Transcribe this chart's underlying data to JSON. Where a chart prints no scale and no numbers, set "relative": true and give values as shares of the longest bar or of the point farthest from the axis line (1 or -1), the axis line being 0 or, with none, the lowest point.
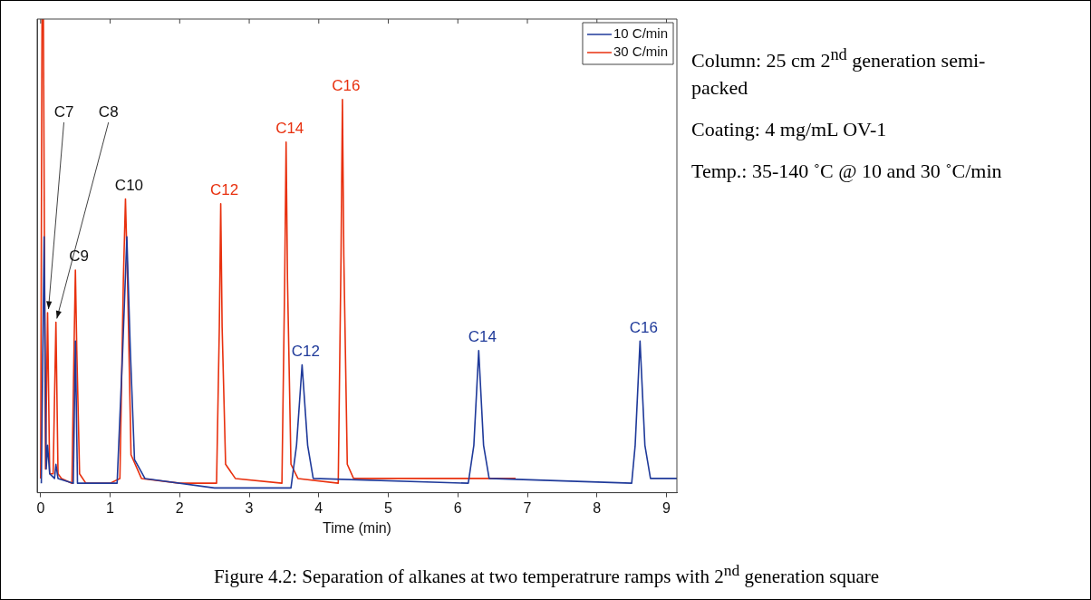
{
  "chart_data": {
    "type": "line",
    "xlabel": "Time (min)",
    "relative": true,
    "legend": "top right",
    "xlim": [
      -0.05,
      9.15
    ],
    "xticks": [
      0,
      1,
      2,
      3,
      4,
      5,
      6,
      7,
      8,
      9
    ],
    "grid": false,
    "series": [
      {
        "name": "10 C/min",
        "color": "#1f3a9a",
        "x": [
          0.01,
          0.05,
          0.08,
          0.1,
          0.13,
          0.2,
          0.22,
          0.25,
          0.47,
          0.5,
          0.53,
          1.1,
          1.18,
          1.24,
          1.29,
          1.35,
          1.5,
          2.5,
          3.6,
          3.68,
          3.76,
          3.84,
          3.92,
          6.15,
          6.23,
          6.3,
          6.37,
          6.45,
          8.5,
          8.55,
          8.62,
          8.69,
          8.77,
          9.15
        ],
        "values": [
          0.02,
          0.54,
          0.05,
          0.1,
          0.04,
          0.03,
          0.06,
          0.03,
          0.02,
          0.32,
          0.02,
          0.02,
          0.3,
          0.54,
          0.3,
          0.07,
          0.03,
          0.01,
          0.01,
          0.1,
          0.27,
          0.1,
          0.03,
          0.02,
          0.1,
          0.3,
          0.1,
          0.03,
          0.02,
          0.1,
          0.32,
          0.1,
          0.03,
          0.03
        ]
      },
      {
        "name": "30 C/min",
        "color": "#e8300e",
        "x": [
          0,
          0.02,
          0.04,
          0.07,
          0.1,
          0.13,
          0.18,
          0.22,
          0.25,
          0.3,
          0.45,
          0.48,
          0.5,
          0.52,
          0.56,
          0.65,
          1.0,
          1.14,
          1.19,
          1.22,
          1.25,
          1.3,
          1.45,
          2.0,
          2.53,
          2.57,
          2.59,
          2.61,
          2.66,
          2.8,
          3.47,
          3.51,
          3.53,
          3.55,
          3.6,
          3.7,
          4.28,
          4.32,
          4.34,
          4.36,
          4.41,
          4.5,
          6.83
        ],
        "values": [
          0.03,
          1,
          1,
          0.05,
          0.38,
          0.04,
          0.04,
          0.36,
          0.04,
          0.03,
          0.02,
          0.3,
          0.47,
          0.3,
          0.04,
          0.02,
          0.02,
          0.03,
          0.45,
          0.62,
          0.45,
          0.08,
          0.03,
          0.02,
          0.02,
          0.35,
          0.61,
          0.35,
          0.06,
          0.03,
          0.02,
          0.45,
          0.74,
          0.45,
          0.06,
          0.03,
          0.02,
          0.5,
          0.83,
          0.5,
          0.06,
          0.03,
          0.03
        ]
      }
    ],
    "annotations": [
      {
        "text": "C7",
        "x": 0.1,
        "y": 0.38
      },
      {
        "text": "C8",
        "x": 0.22,
        "y": 0.36
      },
      {
        "text": "C9",
        "x": 0.5,
        "y": 0.47
      },
      {
        "text": "C10",
        "x": 1.22,
        "y": 0.62
      },
      {
        "text": "C12",
        "x": 2.59,
        "y": 0.61
      },
      {
        "text": "C14",
        "x": 3.53,
        "y": 0.74
      },
      {
        "text": "C16",
        "x": 4.34,
        "y": 0.83
      },
      {
        "text": "C12",
        "x": 3.76,
        "y": 0.27
      },
      {
        "text": "C14",
        "x": 6.3,
        "y": 0.3
      },
      {
        "text": "C16",
        "x": 8.62,
        "y": 0.32
      },
      "Column: 25 cm 2$^{nd}$ generation semi-packed",
      "Coating: 4 mg/mL OV-1",
      "Temp.: 35-140 ˚C @ 10 and 30 ˚C/min",
      "Figure 4.2: Separation of alkanes at two temperatrure ramps with 2$^{nd}$ generation square"
    ]
  }
}
